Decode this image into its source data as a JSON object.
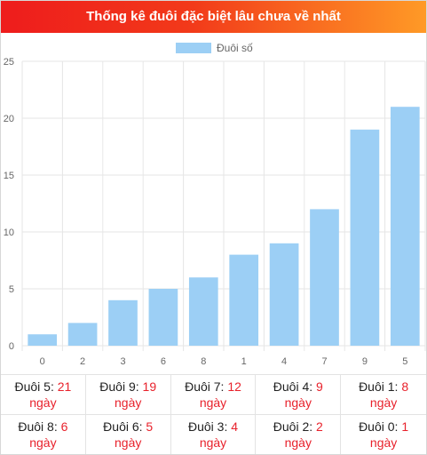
{
  "header": {
    "title": "Thống kê đuôi đặc biệt lâu chưa về nhất"
  },
  "colors": {
    "bar": "#9ccff5",
    "grid": "#e6e6e6",
    "axis_text": "#666666",
    "accent": "#e8212b"
  },
  "chart_data": {
    "type": "bar",
    "categories": [
      "0",
      "2",
      "3",
      "6",
      "8",
      "1",
      "4",
      "7",
      "9",
      "5"
    ],
    "series": [
      {
        "name": "Đuôi số",
        "values": [
          1,
          2,
          4,
          5,
          6,
          8,
          9,
          12,
          19,
          21
        ]
      }
    ],
    "ylim": [
      0,
      25
    ],
    "yticks": [
      0,
      5,
      10,
      15,
      20,
      25
    ],
    "grid": true,
    "legend": "top-center"
  },
  "stats": {
    "label_prefix": "Đuôi",
    "unit": "ngày",
    "rows": [
      [
        {
          "digit": "5",
          "days": "21"
        },
        {
          "digit": "9",
          "days": "19"
        },
        {
          "digit": "7",
          "days": "12"
        },
        {
          "digit": "4",
          "days": "9"
        },
        {
          "digit": "1",
          "days": "8"
        }
      ],
      [
        {
          "digit": "8",
          "days": "6"
        },
        {
          "digit": "6",
          "days": "5"
        },
        {
          "digit": "3",
          "days": "4"
        },
        {
          "digit": "2",
          "days": "2"
        },
        {
          "digit": "0",
          "days": "1"
        }
      ]
    ]
  }
}
